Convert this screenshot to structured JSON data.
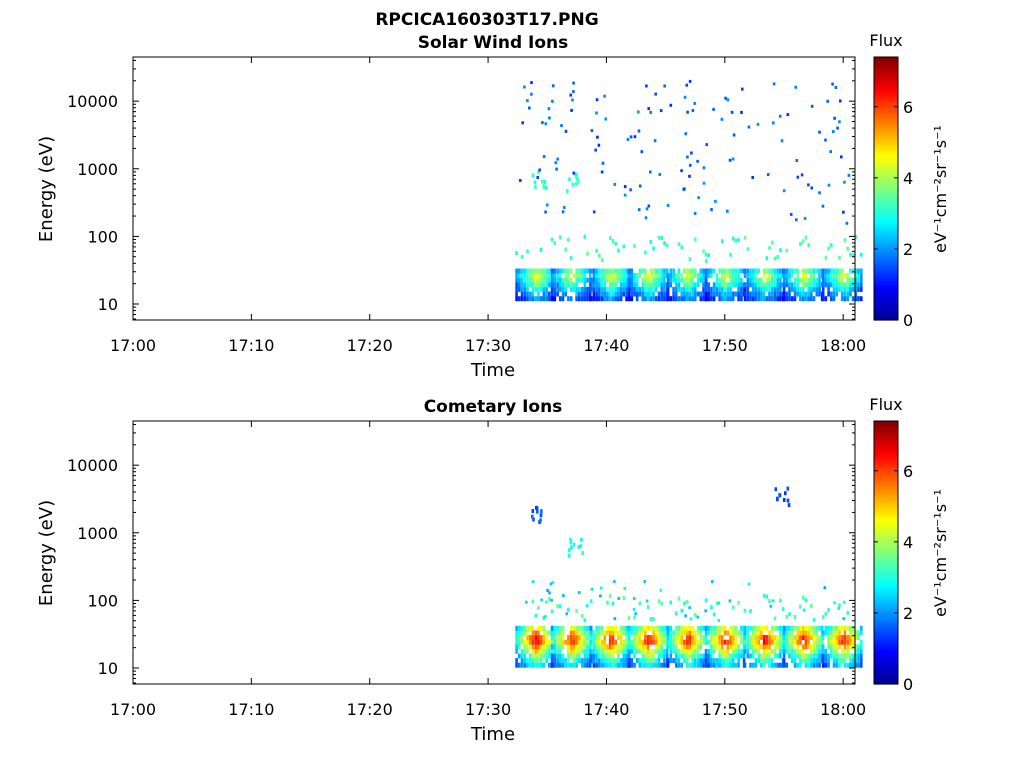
{
  "figure": {
    "filename": "RPCICA160303T17.PNG"
  },
  "colors": {
    "colormap": [
      "#00008f",
      "#0000ff",
      "#007fff",
      "#00ffff",
      "#7fff7f",
      "#ffff00",
      "#ff7f00",
      "#ff0000",
      "#7f0000"
    ]
  },
  "chart_data": [
    {
      "type": "heatmap",
      "title": "Solar Wind Ions",
      "xlabel": "Time",
      "ylabel": "Energy (eV)",
      "x_ticks": [
        "17:00",
        "17:10",
        "17:20",
        "17:30",
        "17:40",
        "17:50",
        "18:00"
      ],
      "x_tick_minutes": [
        0,
        10,
        20,
        30,
        40,
        50,
        60
      ],
      "xlim_minutes": [
        0,
        61
      ],
      "y_scale": "log",
      "y_ticks": [
        10,
        100,
        1000,
        10000
      ],
      "y_tick_labels": [
        "10",
        "100",
        "1000",
        "10000"
      ],
      "ylim": [
        5.8,
        45000
      ],
      "colorbar": {
        "title": "Flux",
        "label": "eV⁻¹cm⁻²sr⁻¹s⁻¹",
        "ticks": [
          0,
          2,
          4,
          6
        ],
        "range": [
          0,
          7.4
        ]
      },
      "data_start_minute": 32.5,
      "low_energy_bursts": {
        "energy_range_eV": [
          12,
          36
        ],
        "minutes": [
          34,
          37,
          40.3,
          43.5,
          46.8,
          50,
          53.3,
          56.6,
          59.9
        ],
        "peak_flux": [
          4.6,
          4.4,
          4.5,
          4.7,
          4.5,
          4.4,
          4.5,
          4.6,
          4.5
        ]
      },
      "mid_energy_patches": [
        {
          "minute": 34.2,
          "energy_eV": 700,
          "flux": 3.1
        },
        {
          "minute": 37.0,
          "energy_eV": 650,
          "flux": 3.2
        }
      ],
      "scattered_range_eV": [
        150,
        20000
      ],
      "scattered_flux": 1.6
    },
    {
      "type": "heatmap",
      "title": "Cometary Ions",
      "xlabel": "Time",
      "ylabel": "Energy (eV)",
      "x_ticks": [
        "17:00",
        "17:10",
        "17:20",
        "17:30",
        "17:40",
        "17:50",
        "18:00"
      ],
      "x_tick_minutes": [
        0,
        10,
        20,
        30,
        40,
        50,
        60
      ],
      "xlim_minutes": [
        0,
        61
      ],
      "y_scale": "log",
      "y_ticks": [
        10,
        100,
        1000,
        10000
      ],
      "y_tick_labels": [
        "10",
        "100",
        "1000",
        "10000"
      ],
      "ylim": [
        5.8,
        45000
      ],
      "colorbar": {
        "title": "Flux",
        "label": "eV⁻¹cm⁻²sr⁻¹s⁻¹",
        "ticks": [
          0,
          2,
          4,
          6
        ],
        "range": [
          0,
          7.4
        ]
      },
      "data_start_minute": 33,
      "low_energy_bursts": {
        "energy_range_eV": [
          11,
          42
        ],
        "minutes": [
          34,
          37,
          40.3,
          43.5,
          46.8,
          50,
          53.3,
          56.6,
          59.9
        ],
        "peak_flux": [
          6.9,
          6.6,
          6.7,
          6.8,
          6.6,
          6.7,
          6.8,
          6.7,
          6.6
        ]
      },
      "mid_energy_patches": [
        {
          "minute": 37.3,
          "energy_eV": 650,
          "flux": 2.9
        },
        {
          "minute": 33.8,
          "energy_eV": 1800,
          "flux": 1.6
        },
        {
          "minute": 54.8,
          "energy_eV": 3500,
          "flux": 1.4
        }
      ],
      "scattered_range_eV": [
        50,
        200
      ],
      "scattered_flux": 2.5
    }
  ]
}
